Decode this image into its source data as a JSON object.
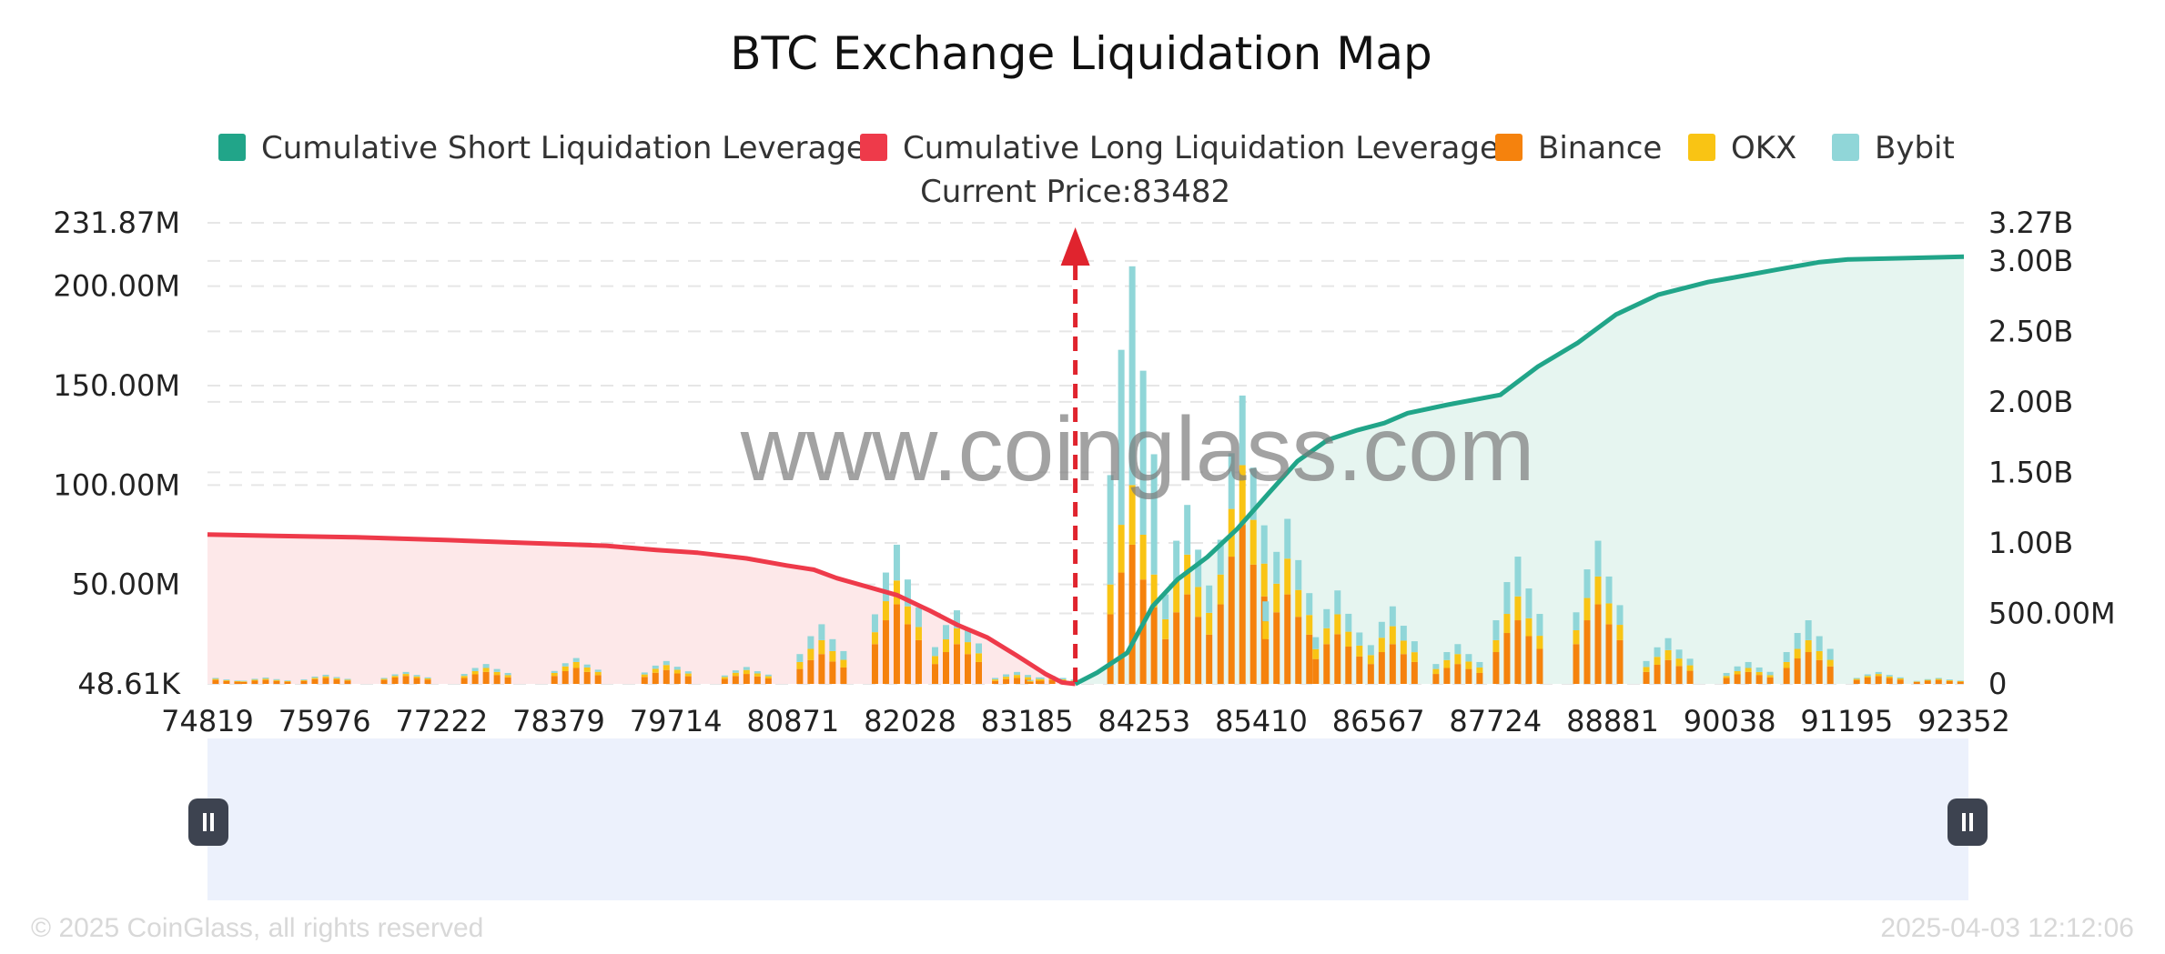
{
  "chart_data": {
    "type": "bar",
    "title": "BTC Exchange Liquidation Map",
    "legend": [
      {
        "label": "Cumulative Short Liquidation Leverage",
        "color": "#21a589"
      },
      {
        "label": "Cumulative Long Liquidation Leverage",
        "color": "#ee3a4a"
      },
      {
        "label": "Binance",
        "color": "#f5820d"
      },
      {
        "label": "OKX",
        "color": "#f9c414"
      },
      {
        "label": "Bybit",
        "color": "#90d6d8"
      }
    ],
    "legend_position": "top",
    "current_price_label": "Current Price:83482",
    "current_price": 83482,
    "x_range": [
      74819,
      92352
    ],
    "x_ticks": [
      "74819",
      "75976",
      "77222",
      "78379",
      "79714",
      "80871",
      "82028",
      "83185",
      "84253",
      "85410",
      "86567",
      "87724",
      "88881",
      "90038",
      "91195",
      "92352"
    ],
    "y_left_ticks": [
      {
        "value": 48610,
        "label": "48.61K"
      },
      {
        "value": 50000000,
        "label": "50.00M"
      },
      {
        "value": 100000000,
        "label": "100.00M"
      },
      {
        "value": 150000000,
        "label": "150.00M"
      },
      {
        "value": 200000000,
        "label": "200.00M"
      },
      {
        "value": 231870000,
        "label": "231.87M"
      }
    ],
    "y_left_range": [
      0,
      231870000
    ],
    "y_right_ticks": [
      {
        "value": 0,
        "label": "0"
      },
      {
        "value": 500000000,
        "label": "500.00M"
      },
      {
        "value": 1000000000,
        "label": "1.00B"
      },
      {
        "value": 1500000000,
        "label": "1.50B"
      },
      {
        "value": 2000000000,
        "label": "2.00B"
      },
      {
        "value": 2500000000,
        "label": "2.50B"
      },
      {
        "value": 3000000000,
        "label": "3.00B"
      },
      {
        "value": 3270000000,
        "label": "3.27B"
      }
    ],
    "y_right_range": [
      0,
      3270000000
    ],
    "grid": true,
    "long_cumulative": [
      [
        74819,
        1060000000
      ],
      [
        75500,
        1050000000
      ],
      [
        76300,
        1040000000
      ],
      [
        77222,
        1020000000
      ],
      [
        78000,
        1000000000
      ],
      [
        78800,
        980000000
      ],
      [
        79300,
        950000000
      ],
      [
        79714,
        930000000
      ],
      [
        80200,
        890000000
      ],
      [
        80600,
        840000000
      ],
      [
        80871,
        810000000
      ],
      [
        81100,
        750000000
      ],
      [
        81400,
        690000000
      ],
      [
        81700,
        630000000
      ],
      [
        82028,
        520000000
      ],
      [
        82300,
        420000000
      ],
      [
        82600,
        330000000
      ],
      [
        82900,
        200000000
      ],
      [
        83185,
        70000000
      ],
      [
        83350,
        10000000
      ],
      [
        83482,
        0
      ]
    ],
    "short_cumulative": [
      [
        83482,
        0
      ],
      [
        83700,
        80000000
      ],
      [
        84000,
        220000000
      ],
      [
        84253,
        550000000
      ],
      [
        84500,
        740000000
      ],
      [
        84800,
        900000000
      ],
      [
        85100,
        1100000000
      ],
      [
        85410,
        1350000000
      ],
      [
        85700,
        1580000000
      ],
      [
        86000,
        1730000000
      ],
      [
        86300,
        1800000000
      ],
      [
        86567,
        1850000000
      ],
      [
        86800,
        1920000000
      ],
      [
        87200,
        1980000000
      ],
      [
        87724,
        2050000000
      ],
      [
        88100,
        2250000000
      ],
      [
        88500,
        2420000000
      ],
      [
        88881,
        2620000000
      ],
      [
        89300,
        2760000000
      ],
      [
        89800,
        2850000000
      ],
      [
        90038,
        2880000000
      ],
      [
        90500,
        2940000000
      ],
      [
        90900,
        2990000000
      ],
      [
        91195,
        3010000000
      ],
      [
        91800,
        3020000000
      ],
      [
        92352,
        3030000000
      ]
    ],
    "bar_clusters": [
      {
        "x": 74900,
        "binance": 2000000,
        "okx": 500000,
        "bybit": 500000
      },
      {
        "x": 75400,
        "binance": 2000000,
        "okx": 600000,
        "bybit": 600000
      },
      {
        "x": 76000,
        "binance": 3000000,
        "okx": 800000,
        "bybit": 800000
      },
      {
        "x": 76800,
        "binance": 4000000,
        "okx": 1000000,
        "bybit": 1000000
      },
      {
        "x": 77600,
        "binance": 6000000,
        "okx": 2000000,
        "bybit": 2000000
      },
      {
        "x": 78500,
        "binance": 8000000,
        "okx": 3000000,
        "bybit": 2000000
      },
      {
        "x": 79400,
        "binance": 7000000,
        "okx": 2500000,
        "bybit": 2000000
      },
      {
        "x": 80200,
        "binance": 5000000,
        "okx": 2000000,
        "bybit": 1500000
      },
      {
        "x": 80950,
        "binance": 15000000,
        "okx": 7000000,
        "bybit": 8000000
      },
      {
        "x": 81700,
        "binance": 40000000,
        "okx": 12000000,
        "bybit": 18000000
      },
      {
        "x": 82300,
        "binance": 20000000,
        "okx": 8000000,
        "bybit": 9000000
      },
      {
        "x": 82900,
        "binance": 3000000,
        "okx": 1500000,
        "bybit": 1500000
      },
      {
        "x": 83250,
        "binance": 2000000,
        "okx": 1000000,
        "bybit": 1000000
      },
      {
        "x": 84050,
        "binance": 70000000,
        "okx": 30000000,
        "bybit": 110000000
      },
      {
        "x": 84600,
        "binance": 45000000,
        "okx": 20000000,
        "bybit": 25000000
      },
      {
        "x": 85150,
        "binance": 80000000,
        "okx": 30000000,
        "bybit": 35000000
      },
      {
        "x": 85600,
        "binance": 45000000,
        "okx": 18000000,
        "bybit": 20000000
      },
      {
        "x": 86100,
        "binance": 25000000,
        "okx": 10000000,
        "bybit": 12000000
      },
      {
        "x": 86650,
        "binance": 20000000,
        "okx": 9000000,
        "bybit": 10000000
      },
      {
        "x": 87300,
        "binance": 10000000,
        "okx": 5000000,
        "bybit": 5000000
      },
      {
        "x": 87900,
        "binance": 32000000,
        "okx": 12000000,
        "bybit": 20000000
      },
      {
        "x": 88700,
        "binance": 40000000,
        "okx": 14000000,
        "bybit": 18000000
      },
      {
        "x": 89400,
        "binance": 12000000,
        "okx": 5000000,
        "bybit": 6000000
      },
      {
        "x": 90200,
        "binance": 6000000,
        "okx": 2000000,
        "bybit": 3000000
      },
      {
        "x": 90800,
        "binance": 16000000,
        "okx": 6000000,
        "bybit": 10000000
      },
      {
        "x": 91500,
        "binance": 4000000,
        "okx": 1000000,
        "bybit": 1000000
      },
      {
        "x": 92100,
        "binance": 2000000,
        "okx": 500000,
        "bybit": 500000
      }
    ]
  },
  "colors": {
    "short": "#21a589",
    "long": "#ee3a4a",
    "binance": "#f5820d",
    "okx": "#f9c414",
    "bybit": "#90d6d8",
    "short_area": "#e6f5f0",
    "long_area": "#fde8e9",
    "zoom_fill": "#ecf1fc",
    "grid": "#e6e6e6",
    "price_marker": "#e0242e"
  },
  "watermark": "www.coinglass.com",
  "footer": {
    "copyright": "© 2025 CoinGlass, all rights reserved",
    "timestamp": "2025-04-03 12:12:06"
  },
  "zoom_handles": {
    "left_icon": "pause-icon",
    "right_icon": "pause-icon"
  }
}
